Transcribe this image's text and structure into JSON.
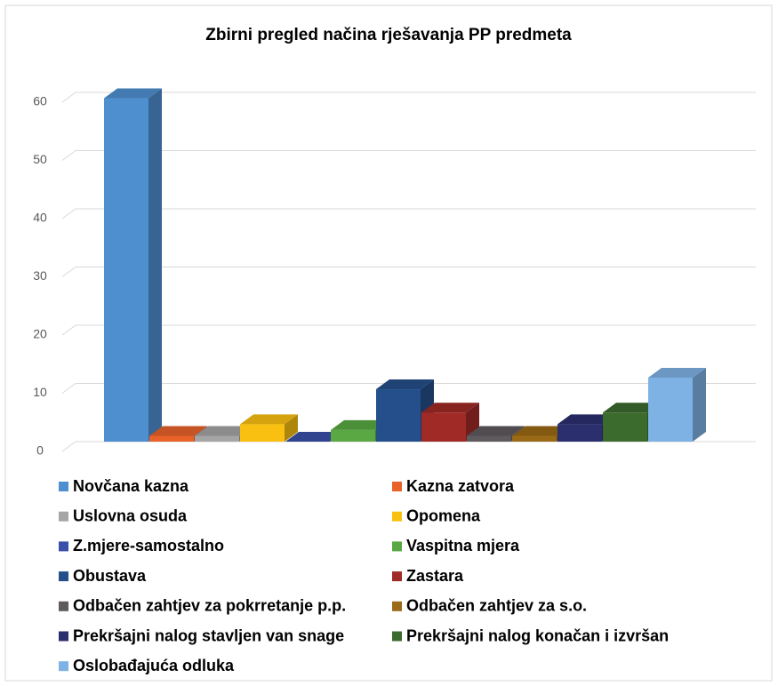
{
  "chart_data": {
    "type": "bar3d",
    "title": "Zbirni pregled načina rješavanja PP predmeta",
    "categories": [
      "Novčana kazna",
      "Kazna zatvora",
      "Uslovna osuda",
      "Opomena",
      "Z.mjere-samostalno",
      "Vaspitna mjera",
      "Obustava",
      "Zastara",
      "Odbačen zahtjev za pokrretanje p.p.",
      "Odbačen zahtjev za s.o.",
      "Prekršajni nalog stavljen van snage",
      "Prekršajni nalog konačan i izvršan",
      "Oslobađajuća odluka"
    ],
    "values": [
      59,
      1,
      1,
      3,
      0,
      2,
      9,
      5,
      1,
      1,
      3,
      5,
      11
    ],
    "colors": [
      "#4e8fd0",
      "#e8622a",
      "#a5a5a5",
      "#f9c011",
      "#3a4fa8",
      "#5aa843",
      "#244f8a",
      "#a02a26",
      "#5f5a5e",
      "#9b6a16",
      "#2b2f6e",
      "#3c6b2e",
      "#7fb2e4"
    ],
    "ylim": [
      0,
      60
    ],
    "yticks": [
      0,
      10,
      20,
      30,
      40,
      50,
      60
    ],
    "grid": true,
    "legend": "bottom"
  }
}
